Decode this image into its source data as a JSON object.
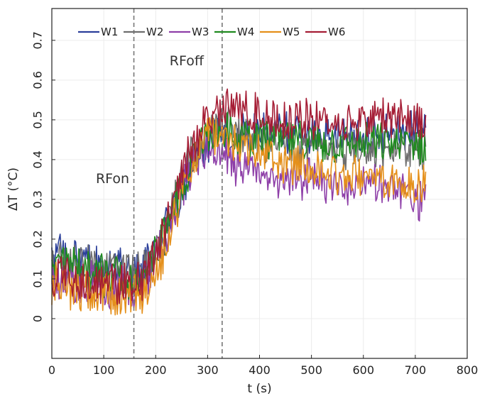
{
  "chart_data": {
    "type": "line",
    "title": "",
    "xlabel": "t (s)",
    "ylabel": "ΔT (°C)",
    "xlim": [
      0,
      800
    ],
    "ylim": [
      -0.1,
      0.78
    ],
    "xticks": [
      0,
      100,
      200,
      300,
      400,
      500,
      600,
      700,
      800
    ],
    "xtick_labels": [
      "0",
      "100",
      "200",
      "300",
      "400",
      "500",
      "600",
      "700",
      "800"
    ],
    "yticks": [
      0,
      0.1,
      0.2,
      0.3,
      0.4,
      0.5,
      0.6,
      0.7
    ],
    "ytick_labels": [
      "0",
      "0.1",
      "0.2",
      "0.3",
      "0.4",
      "0.5",
      "0.6",
      "0.7"
    ],
    "grid": true,
    "legend": "top-left",
    "annotations": [
      {
        "text": "RFon",
        "x": 158
      },
      {
        "text": "RFoff",
        "x": 328
      }
    ],
    "vlines": [
      158,
      328
    ],
    "series": [
      {
        "name": "W1",
        "color": "#2b3f9a",
        "x": [
          0,
          20,
          40,
          60,
          80,
          100,
          120,
          140,
          160,
          180,
          200,
          220,
          240,
          260,
          280,
          300,
          320,
          340,
          360,
          380,
          400,
          450,
          500,
          550,
          600,
          650,
          700,
          720
        ],
        "y": [
          0.15,
          0.16,
          0.15,
          0.14,
          0.13,
          0.13,
          0.12,
          0.12,
          0.12,
          0.13,
          0.17,
          0.23,
          0.29,
          0.35,
          0.4,
          0.44,
          0.46,
          0.47,
          0.47,
          0.47,
          0.47,
          0.47,
          0.46,
          0.46,
          0.46,
          0.47,
          0.47,
          0.46
        ]
      },
      {
        "name": "W2",
        "color": "#6e6e6e",
        "x": [
          0,
          20,
          40,
          60,
          80,
          100,
          120,
          140,
          160,
          180,
          200,
          220,
          240,
          260,
          280,
          300,
          320,
          340,
          360,
          380,
          400,
          450,
          500,
          550,
          600,
          650,
          700,
          720
        ],
        "y": [
          0.13,
          0.14,
          0.13,
          0.13,
          0.12,
          0.12,
          0.12,
          0.11,
          0.11,
          0.12,
          0.17,
          0.24,
          0.31,
          0.38,
          0.43,
          0.46,
          0.48,
          0.48,
          0.47,
          0.46,
          0.45,
          0.44,
          0.43,
          0.42,
          0.42,
          0.43,
          0.43,
          0.42
        ]
      },
      {
        "name": "W3",
        "color": "#8e3fa8",
        "x": [
          0,
          20,
          40,
          60,
          80,
          100,
          120,
          140,
          160,
          180,
          200,
          220,
          240,
          260,
          280,
          300,
          320,
          340,
          360,
          380,
          400,
          450,
          500,
          550,
          600,
          650,
          700,
          720
        ],
        "y": [
          0.1,
          0.1,
          0.09,
          0.09,
          0.09,
          0.08,
          0.08,
          0.08,
          0.08,
          0.09,
          0.14,
          0.21,
          0.29,
          0.36,
          0.41,
          0.43,
          0.42,
          0.4,
          0.38,
          0.37,
          0.36,
          0.35,
          0.35,
          0.34,
          0.34,
          0.33,
          0.3,
          0.29
        ]
      },
      {
        "name": "W4",
        "color": "#1f8a1f",
        "x": [
          0,
          20,
          40,
          60,
          80,
          100,
          120,
          140,
          160,
          180,
          200,
          220,
          240,
          260,
          280,
          300,
          320,
          340,
          360,
          380,
          400,
          450,
          500,
          550,
          600,
          650,
          700,
          720
        ],
        "y": [
          0.12,
          0.12,
          0.12,
          0.12,
          0.11,
          0.11,
          0.11,
          0.1,
          0.1,
          0.11,
          0.15,
          0.22,
          0.3,
          0.37,
          0.42,
          0.46,
          0.47,
          0.47,
          0.46,
          0.46,
          0.45,
          0.45,
          0.44,
          0.44,
          0.44,
          0.44,
          0.44,
          0.43
        ]
      },
      {
        "name": "W5",
        "color": "#e5901b",
        "x": [
          0,
          20,
          40,
          60,
          80,
          100,
          120,
          140,
          160,
          180,
          200,
          220,
          240,
          260,
          280,
          300,
          320,
          340,
          360,
          380,
          400,
          450,
          500,
          550,
          600,
          650,
          700,
          720
        ],
        "y": [
          0.09,
          0.08,
          0.07,
          0.07,
          0.07,
          0.07,
          0.06,
          0.06,
          0.06,
          0.06,
          0.11,
          0.19,
          0.27,
          0.35,
          0.42,
          0.46,
          0.47,
          0.46,
          0.44,
          0.42,
          0.41,
          0.39,
          0.38,
          0.36,
          0.36,
          0.35,
          0.34,
          0.33
        ]
      },
      {
        "name": "W6",
        "color": "#a51d35",
        "x": [
          0,
          20,
          40,
          60,
          80,
          100,
          120,
          140,
          160,
          180,
          200,
          220,
          240,
          260,
          280,
          300,
          320,
          340,
          360,
          380,
          400,
          450,
          500,
          550,
          600,
          650,
          700,
          720
        ],
        "y": [
          0.11,
          0.11,
          0.1,
          0.1,
          0.1,
          0.09,
          0.09,
          0.09,
          0.09,
          0.1,
          0.16,
          0.24,
          0.32,
          0.4,
          0.46,
          0.51,
          0.53,
          0.53,
          0.53,
          0.52,
          0.51,
          0.5,
          0.5,
          0.49,
          0.5,
          0.51,
          0.5,
          0.49
        ]
      }
    ]
  }
}
